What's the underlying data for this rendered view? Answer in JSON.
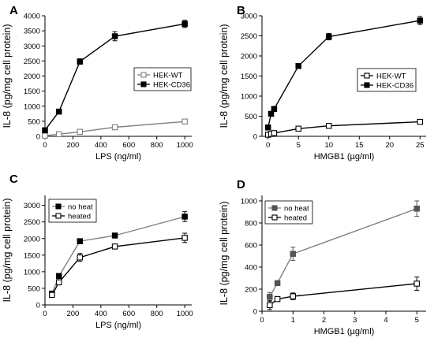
{
  "chart_data": [
    {
      "type": "line",
      "panel": "A",
      "xlabel": "LPS (ng/ml)",
      "ylabel": "IL-8 (pg/mg cell protein)",
      "xlim": [
        0,
        1050
      ],
      "ylim": [
        0,
        4000
      ],
      "xticks": [
        0,
        200,
        400,
        600,
        800,
        1000
      ],
      "yticks": [
        0,
        500,
        1000,
        1500,
        2000,
        2500,
        3000,
        3500,
        4000
      ],
      "grid": false,
      "legend_position": "middle-right",
      "series": [
        {
          "name": "HEK-WT",
          "marker": "open-square",
          "color": "#808080",
          "x": [
            0,
            100,
            250,
            500,
            1000
          ],
          "y": [
            20,
            70,
            150,
            300,
            490
          ],
          "err": [
            0,
            0,
            0,
            0,
            0
          ]
        },
        {
          "name": "HEK-CD36",
          "marker": "filled-square",
          "color": "#000000",
          "x": [
            0,
            100,
            250,
            500,
            1000
          ],
          "y": [
            200,
            820,
            2480,
            3320,
            3730
          ],
          "err": [
            0,
            0,
            90,
            150,
            120
          ]
        }
      ]
    },
    {
      "type": "line",
      "panel": "B",
      "xlabel": "HMGB1 (µg/ml)",
      "ylabel": "IL-8 (pg/mg cell protein)",
      "xlim": [
        -1,
        26
      ],
      "ylim": [
        0,
        3000
      ],
      "xticks": [
        0,
        5,
        10,
        15,
        20,
        25
      ],
      "yticks": [
        0,
        500,
        1000,
        1500,
        2000,
        2500,
        3000
      ],
      "grid": false,
      "legend_position": "middle-right",
      "series": [
        {
          "name": "HEK-WT",
          "marker": "open-square",
          "color": "#000000",
          "x": [
            0,
            0.5,
            1,
            5,
            10,
            25
          ],
          "y": [
            40,
            60,
            80,
            190,
            260,
            360
          ],
          "err": [
            0,
            0,
            0,
            0,
            0,
            0
          ]
        },
        {
          "name": "HEK-CD36",
          "marker": "filled-square",
          "color": "#000000",
          "x": [
            0,
            0.5,
            1,
            5,
            10,
            25
          ],
          "y": [
            220,
            560,
            680,
            1750,
            2480,
            2880
          ],
          "err": [
            0,
            0,
            0,
            0,
            80,
            100
          ]
        }
      ]
    },
    {
      "type": "line",
      "panel": "C",
      "xlabel": "LPS (ng/ml)",
      "ylabel": "IL-8 (pg/mg cell protein)",
      "xlim": [
        0,
        1050
      ],
      "ylim": [
        0,
        3300
      ],
      "xticks": [
        0,
        200,
        400,
        600,
        800,
        1000
      ],
      "yticks": [
        0,
        500,
        1000,
        1500,
        2000,
        2500,
        3000
      ],
      "grid": false,
      "legend_position": "top-left",
      "series": [
        {
          "name": "no heat",
          "marker": "filled-square",
          "color": "#000000",
          "line_color": "#808080",
          "x": [
            50,
            100,
            250,
            500,
            1000
          ],
          "y": [
            340,
            870,
            1920,
            2090,
            2660
          ],
          "err": [
            60,
            70,
            0,
            0,
            150
          ]
        },
        {
          "name": "heated",
          "marker": "open-square",
          "color": "#000000",
          "line_color": "#000000",
          "x": [
            50,
            100,
            250,
            500,
            1000
          ],
          "y": [
            300,
            680,
            1430,
            1760,
            2020
          ],
          "err": [
            40,
            50,
            120,
            0,
            140
          ]
        }
      ]
    },
    {
      "type": "line",
      "panel": "D",
      "xlabel": "HMGB1 (µg/ml)",
      "ylabel": "IL-8 (pg/mg cell protein)",
      "xlim": [
        0,
        5.3
      ],
      "ylim": [
        0,
        1050
      ],
      "xticks": [
        0,
        1,
        2,
        3,
        4,
        5
      ],
      "yticks": [
        0,
        200,
        400,
        600,
        800,
        1000
      ],
      "grid": false,
      "legend_position": "top-left",
      "series": [
        {
          "name": "no heat",
          "marker": "filled-square",
          "color": "#555555",
          "line_color": "#808080",
          "x": [
            0.25,
            0.5,
            1,
            5
          ],
          "y": [
            130,
            255,
            520,
            930
          ],
          "err": [
            40,
            0,
            60,
            70
          ]
        },
        {
          "name": "heated",
          "marker": "open-square",
          "color": "#000000",
          "line_color": "#000000",
          "x": [
            0.25,
            0.5,
            1,
            5
          ],
          "y": [
            55,
            110,
            135,
            250
          ],
          "err": [
            40,
            15,
            30,
            60
          ]
        }
      ]
    }
  ]
}
